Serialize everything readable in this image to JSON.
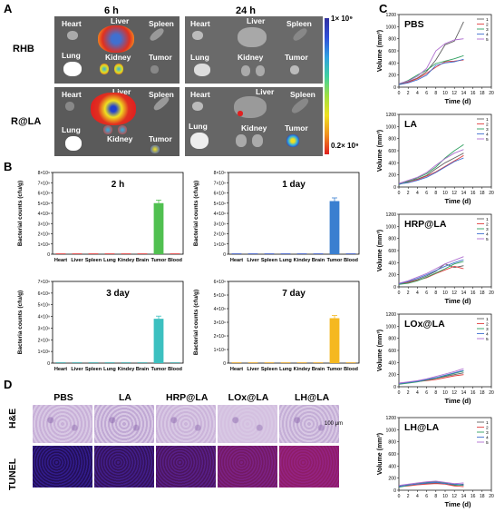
{
  "panels": {
    "A": {
      "letter": "A",
      "time_labels": [
        "6 h",
        "24 h"
      ],
      "row_labels": [
        "RHB",
        "R@LA"
      ],
      "organs": {
        "heart": "Heart",
        "liver": "Liver",
        "spleen": "Spleen",
        "lung": "Lung",
        "kidney": "Kidney",
        "tumor": "Tumor"
      },
      "colorbar_max": "1× 10⁹",
      "colorbar_min": "0.2× 10⁹"
    },
    "B": {
      "letter": "B"
    },
    "C": {
      "letter": "C"
    },
    "D": {
      "letter": "D",
      "groups": [
        "PBS",
        "LA",
        "HRP@LA",
        "LOx@LA",
        "LH@LA"
      ],
      "row_labels": [
        "H&E",
        "TUNEL"
      ],
      "scale_bar": "100 μm"
    }
  },
  "chart_data": [
    {
      "type": "bar",
      "panel": "B",
      "title": "2 h",
      "categories": [
        "Heart",
        "Liver",
        "Spleen",
        "Lung",
        "Kindey",
        "Brain",
        "Tumor",
        "Blood"
      ],
      "values": [
        0,
        0,
        0,
        0,
        0,
        0,
        5000000000,
        0
      ],
      "ylabel": "Bacterial counts (cfu/g)",
      "ylim": [
        0,
        8000000000
      ],
      "yticks": [
        "0",
        "1×10⁹",
        "2×10⁹",
        "3×10⁹",
        "4×10⁹",
        "5×10⁹",
        "6×10⁹",
        "7×10⁹",
        "8×10⁹"
      ],
      "bar_colors": [
        "#e03030",
        "#e03030",
        "#e03030",
        "#e03030",
        "#e03030",
        "#e03030",
        "#50c050",
        "#e03030"
      ]
    },
    {
      "type": "bar",
      "panel": "B",
      "title": "1 day",
      "categories": [
        "Heart",
        "Liver",
        "Spleen",
        "Lung",
        "Kindey",
        "Brain",
        "Tumor",
        "Blood"
      ],
      "values": [
        0,
        0,
        0,
        0,
        0,
        0,
        5200000000,
        0
      ],
      "ylabel": "Bacterial counts (cfu/g)",
      "ylim": [
        0,
        8000000000
      ],
      "yticks": [
        "0",
        "1×10⁹",
        "2×10⁹",
        "3×10⁹",
        "4×10⁹",
        "5×10⁹",
        "6×10⁹",
        "7×10⁹",
        "8×10⁹"
      ],
      "bar_colors": [
        "#3050c0",
        "#3050c0",
        "#3050c0",
        "#3050c0",
        "#3050c0",
        "#3050c0",
        "#3a7fd0",
        "#3050c0"
      ]
    },
    {
      "type": "bar",
      "panel": "B",
      "title": "3 day",
      "categories": [
        "Heart",
        "Liver",
        "Spleen",
        "Lung",
        "Kindey",
        "Brain",
        "Tumor",
        "Blood"
      ],
      "values": [
        0,
        0,
        0,
        0,
        0,
        0,
        3800000000,
        0
      ],
      "ylabel": "Bacteria counts (cfu/g)",
      "ylim": [
        0,
        7000000000
      ],
      "yticks": [
        "0",
        "1×10⁹",
        "2×10⁹",
        "3×10⁹",
        "4×10⁹",
        "5×10⁹",
        "6×10⁹",
        "7×10⁹"
      ],
      "bar_colors": [
        "#30a0a0",
        "#30a0a0",
        "#30a0a0",
        "#30a0a0",
        "#30a0a0",
        "#30a0a0",
        "#3cc0c0",
        "#30a0a0"
      ]
    },
    {
      "type": "bar",
      "panel": "B",
      "title": "7 day",
      "categories": [
        "Heart",
        "Liver",
        "Spleen",
        "Lung",
        "Kindey",
        "Brain",
        "Tumor",
        "Blood"
      ],
      "values": [
        0,
        0,
        0,
        0,
        0,
        0,
        3300000000,
        0
      ],
      "ylabel": "Bacterial counts (cfu/g)",
      "ylim": [
        0,
        6000000000
      ],
      "yticks": [
        "0",
        "1×10⁹",
        "2×10⁹",
        "3×10⁹",
        "4×10⁹",
        "5×10⁹",
        "6×10⁹"
      ],
      "bar_colors": [
        "#e0a020",
        "#e0a020",
        "#e0a020",
        "#e0a020",
        "#e0a020",
        "#e0a020",
        "#f5b820",
        "#e0a020"
      ]
    },
    {
      "type": "line",
      "panel": "C",
      "title": "PBS",
      "x": [
        0,
        2,
        4,
        6,
        8,
        10,
        12,
        14
      ],
      "series": [
        {
          "name": "1",
          "values": [
            50,
            90,
            150,
            260,
            450,
            700,
            760,
            1080
          ],
          "color": "#606060"
        },
        {
          "name": "2",
          "values": [
            40,
            80,
            140,
            230,
            330,
            420,
            430,
            450
          ],
          "color": "#e04040"
        },
        {
          "name": "3",
          "values": [
            50,
            110,
            200,
            280,
            390,
            430,
            470,
            520
          ],
          "color": "#30a060"
        },
        {
          "name": "4",
          "values": [
            40,
            70,
            120,
            200,
            360,
            400,
            420,
            460
          ],
          "color": "#4070d0"
        },
        {
          "name": "5",
          "values": [
            60,
            100,
            180,
            310,
            600,
            720,
            780,
            800
          ],
          "color": "#b070d0"
        }
      ],
      "xlabel": "Time (d)",
      "ylabel": "Volume (mm³)",
      "xlim": [
        0,
        20
      ],
      "ylim": [
        0,
        1200
      ],
      "xticks": [
        0,
        2,
        4,
        6,
        8,
        10,
        12,
        14,
        16,
        18,
        20
      ],
      "yticks": [
        0,
        200,
        400,
        600,
        800,
        1000,
        1200
      ]
    },
    {
      "type": "line",
      "panel": "C",
      "title": "LA",
      "x": [
        0,
        2,
        4,
        6,
        8,
        10,
        12,
        14
      ],
      "series": [
        {
          "name": "1",
          "values": [
            60,
            100,
            130,
            190,
            300,
            400,
            480,
            560
          ],
          "color": "#606060"
        },
        {
          "name": "2",
          "values": [
            50,
            80,
            120,
            180,
            250,
            340,
            430,
            520
          ],
          "color": "#e04040"
        },
        {
          "name": "3",
          "values": [
            40,
            90,
            150,
            220,
            330,
            480,
            600,
            700
          ],
          "color": "#30a060"
        },
        {
          "name": "4",
          "values": [
            50,
            70,
            110,
            160,
            240,
            330,
            420,
            480
          ],
          "color": "#4070d0"
        },
        {
          "name": "5",
          "values": [
            60,
            110,
            160,
            240,
            360,
            470,
            560,
            620
          ],
          "color": "#b070d0"
        }
      ],
      "xlabel": "Time (d)",
      "ylabel": "Volume (mm³)",
      "xlim": [
        0,
        20
      ],
      "ylim": [
        0,
        1200
      ],
      "xticks": [
        0,
        2,
        4,
        6,
        8,
        10,
        12,
        14,
        16,
        18,
        20
      ],
      "yticks": [
        0,
        200,
        400,
        600,
        800,
        1000,
        1200
      ]
    },
    {
      "type": "line",
      "panel": "C",
      "title": "HRP@LA",
      "x": [
        0,
        2,
        4,
        6,
        8,
        10,
        12,
        14
      ],
      "series": [
        {
          "name": "1",
          "values": [
            60,
            80,
            120,
            180,
            260,
            380,
            320,
            350
          ],
          "color": "#606060"
        },
        {
          "name": "2",
          "values": [
            50,
            70,
            110,
            150,
            220,
            280,
            340,
            300
          ],
          "color": "#e04040"
        },
        {
          "name": "3",
          "values": [
            40,
            60,
            100,
            160,
            230,
            300,
            380,
            420
          ],
          "color": "#30a060"
        },
        {
          "name": "4",
          "values": [
            50,
            90,
            140,
            200,
            270,
            340,
            400,
            450
          ],
          "color": "#4070d0"
        },
        {
          "name": "5",
          "values": [
            60,
            100,
            160,
            220,
            300,
            380,
            440,
            500
          ],
          "color": "#b070d0"
        }
      ],
      "xlabel": "Time (d)",
      "ylabel": "Volume (mm³)",
      "xlim": [
        0,
        20
      ],
      "ylim": [
        0,
        1200
      ],
      "xticks": [
        0,
        2,
        4,
        6,
        8,
        10,
        12,
        14,
        16,
        18,
        20
      ],
      "yticks": [
        0,
        200,
        400,
        600,
        800,
        1000,
        1200
      ]
    },
    {
      "type": "line",
      "panel": "C",
      "title": "LOx@LA",
      "x": [
        0,
        2,
        4,
        6,
        8,
        10,
        12,
        14
      ],
      "series": [
        {
          "name": "1",
          "values": [
            60,
            70,
            90,
            110,
            140,
            170,
            200,
            230
          ],
          "color": "#606060"
        },
        {
          "name": "2",
          "values": [
            50,
            70,
            85,
            100,
            120,
            150,
            180,
            200
          ],
          "color": "#e04040"
        },
        {
          "name": "3",
          "values": [
            40,
            60,
            80,
            110,
            140,
            180,
            220,
            260
          ],
          "color": "#30a060"
        },
        {
          "name": "4",
          "values": [
            50,
            70,
            90,
            120,
            150,
            190,
            230,
            270
          ],
          "color": "#4070d0"
        },
        {
          "name": "5",
          "values": [
            60,
            80,
            100,
            130,
            170,
            210,
            250,
            300
          ],
          "color": "#b070d0"
        }
      ],
      "xlabel": "Time (d)",
      "ylabel": "Volume (mm³)",
      "xlim": [
        0,
        20
      ],
      "ylim": [
        0,
        1200
      ],
      "xticks": [
        0,
        2,
        4,
        6,
        8,
        10,
        12,
        14,
        16,
        18,
        20
      ],
      "yticks": [
        0,
        200,
        400,
        600,
        800,
        1000,
        1200
      ]
    },
    {
      "type": "line",
      "panel": "C",
      "title": "LH@LA",
      "x": [
        0,
        2,
        4,
        6,
        8,
        10,
        12,
        14
      ],
      "series": [
        {
          "name": "1",
          "values": [
            70,
            80,
            100,
            110,
            120,
            110,
            80,
            100
          ],
          "color": "#606060"
        },
        {
          "name": "2",
          "values": [
            60,
            70,
            90,
            100,
            110,
            100,
            70,
            60
          ],
          "color": "#e04040"
        },
        {
          "name": "3",
          "values": [
            50,
            80,
            110,
            130,
            140,
            120,
            90,
            80
          ],
          "color": "#30a060"
        },
        {
          "name": "4",
          "values": [
            60,
            90,
            100,
            120,
            130,
            110,
            100,
            90
          ],
          "color": "#4070d0"
        },
        {
          "name": "5",
          "values": [
            80,
            100,
            120,
            140,
            150,
            130,
            110,
            120
          ],
          "color": "#b070d0"
        }
      ],
      "xlabel": "Time (d)",
      "ylabel": "Volume (mm³)",
      "xlim": [
        0,
        20
      ],
      "ylim": [
        0,
        1200
      ],
      "xticks": [
        0,
        2,
        4,
        6,
        8,
        10,
        12,
        14,
        16,
        18,
        20
      ],
      "yticks": [
        0,
        200,
        400,
        600,
        800,
        1000,
        1200
      ]
    }
  ]
}
